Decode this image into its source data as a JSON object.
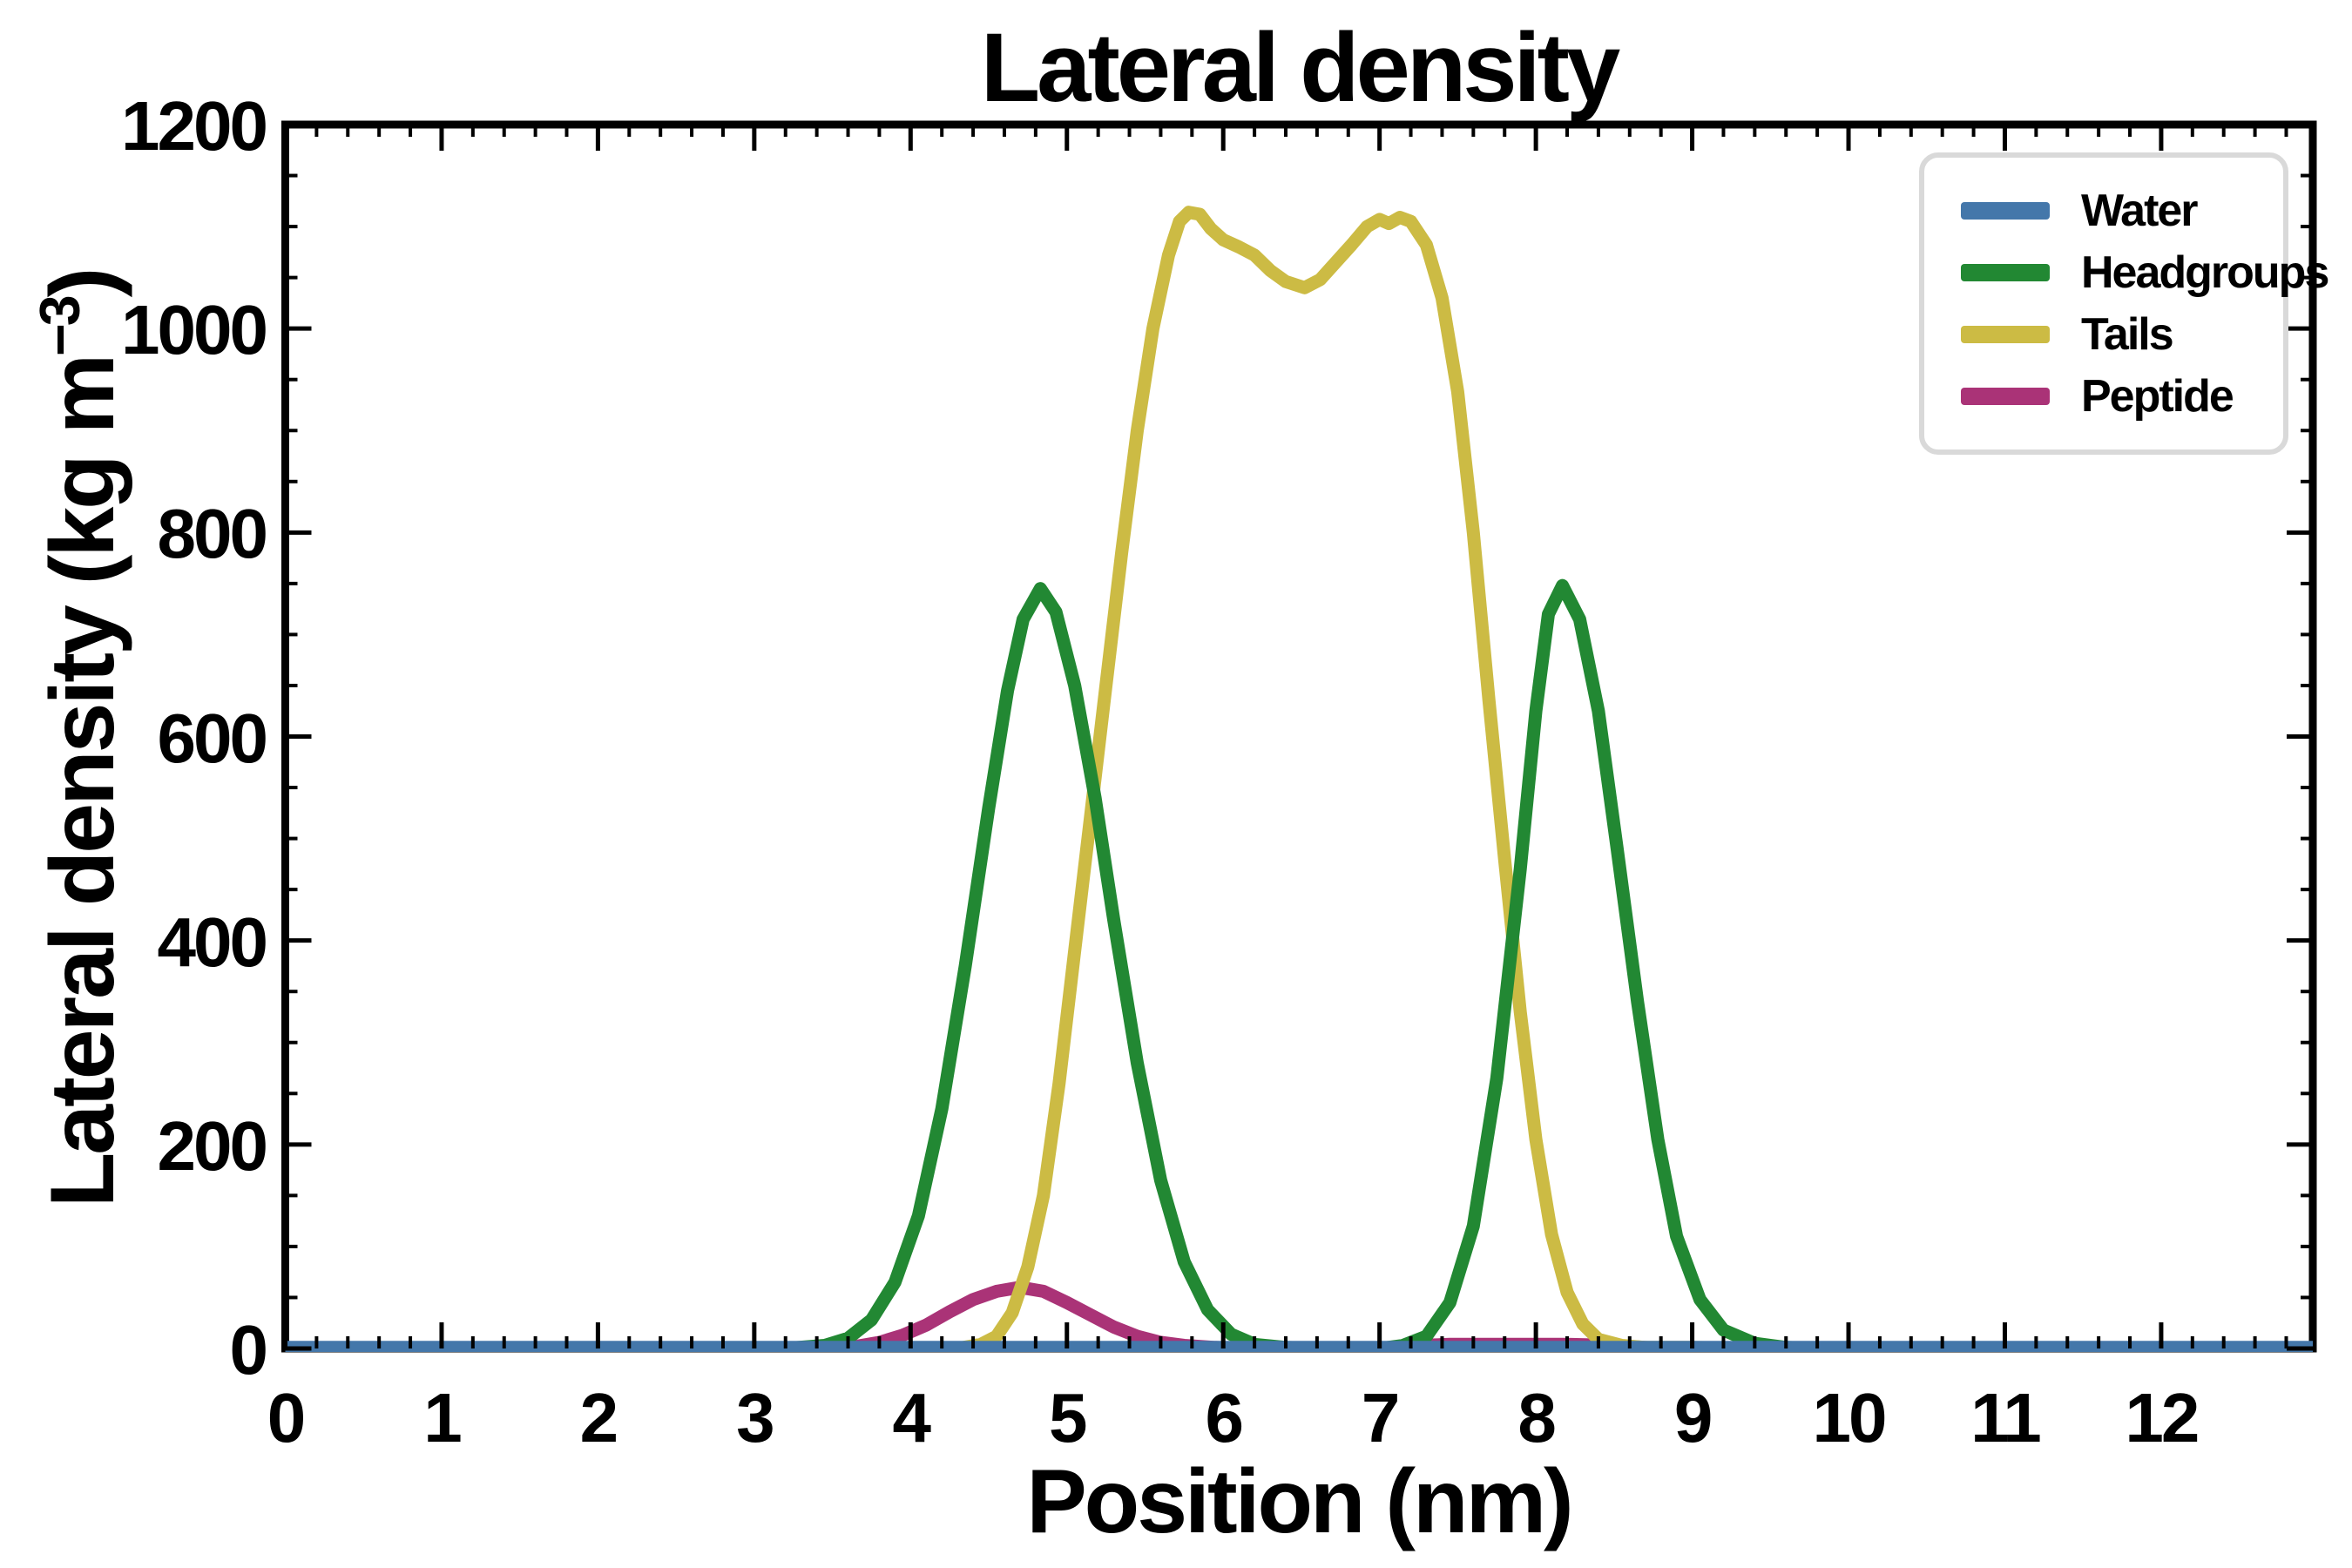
{
  "title": "Lateral density",
  "axes": {
    "xlabel": "Position (nm)",
    "ylabel": "Lateral density (kg m⁻³)",
    "ylabel_prefix": "Lateral density (kg m",
    "ylabel_sup": "−3",
    "ylabel_suffix": ")",
    "x_ticks": [
      0,
      1,
      2,
      3,
      4,
      5,
      6,
      7,
      8,
      9,
      10,
      11,
      12
    ],
    "y_ticks": [
      0,
      200,
      400,
      600,
      800,
      1000,
      1200
    ],
    "x_minor_step": 0.2,
    "y_minor_step": 50,
    "xlim": [
      0,
      12.97
    ],
    "ylim": [
      0,
      1200
    ]
  },
  "legend": {
    "items": [
      {
        "label": "Water",
        "color": "#4477AA"
      },
      {
        "label": "Headgroups",
        "color": "#228833"
      },
      {
        "label": "Tails",
        "color": "#CCBB44"
      },
      {
        "label": "Peptide",
        "color": "#AA3377"
      }
    ]
  },
  "chart_data": {
    "type": "line",
    "title": "Lateral density",
    "xlabel": "Position (nm)",
    "ylabel": "Lateral density (kg m⁻³)",
    "xlim": [
      0,
      12.97
    ],
    "ylim": [
      0,
      1200
    ],
    "grid": false,
    "legend_position": "upper right",
    "draw_order": [
      "Peptide",
      "Tails",
      "Headgroups",
      "Water"
    ],
    "series": [
      {
        "name": "Water",
        "color": "#4477AA",
        "points": [
          [
            0,
            1
          ],
          [
            1,
            1
          ],
          [
            2,
            1
          ],
          [
            3,
            1
          ],
          [
            4,
            1
          ],
          [
            5,
            1
          ],
          [
            6,
            1
          ],
          [
            7,
            1
          ],
          [
            8,
            1
          ],
          [
            9,
            1
          ],
          [
            10,
            1
          ],
          [
            11,
            1
          ],
          [
            12,
            1
          ],
          [
            12.97,
            1
          ]
        ]
      },
      {
        "name": "Headgroups",
        "color": "#228833",
        "points": [
          [
            0,
            0
          ],
          [
            3.0,
            0
          ],
          [
            3.2,
            0
          ],
          [
            3.45,
            3
          ],
          [
            3.6,
            10
          ],
          [
            3.75,
            28
          ],
          [
            3.9,
            65
          ],
          [
            4.05,
            130
          ],
          [
            4.2,
            235
          ],
          [
            4.35,
            375
          ],
          [
            4.5,
            530
          ],
          [
            4.62,
            645
          ],
          [
            4.72,
            715
          ],
          [
            4.83,
            745
          ],
          [
            4.93,
            722
          ],
          [
            5.05,
            650
          ],
          [
            5.18,
            540
          ],
          [
            5.3,
            420
          ],
          [
            5.45,
            280
          ],
          [
            5.6,
            165
          ],
          [
            5.75,
            85
          ],
          [
            5.9,
            38
          ],
          [
            6.05,
            14
          ],
          [
            6.2,
            4
          ],
          [
            6.4,
            1
          ],
          [
            6.6,
            0
          ],
          [
            7.0,
            0
          ],
          [
            7.15,
            3
          ],
          [
            7.3,
            12
          ],
          [
            7.45,
            45
          ],
          [
            7.6,
            120
          ],
          [
            7.75,
            265
          ],
          [
            7.9,
            470
          ],
          [
            8.0,
            625
          ],
          [
            8.08,
            720
          ],
          [
            8.17,
            748
          ],
          [
            8.28,
            715
          ],
          [
            8.4,
            625
          ],
          [
            8.52,
            490
          ],
          [
            8.65,
            340
          ],
          [
            8.78,
            205
          ],
          [
            8.9,
            110
          ],
          [
            9.05,
            48
          ],
          [
            9.2,
            18
          ],
          [
            9.4,
            5
          ],
          [
            9.6,
            1
          ],
          [
            9.8,
            0
          ],
          [
            12.97,
            0
          ]
        ]
      },
      {
        "name": "Tails",
        "color": "#CCBB44",
        "points": [
          [
            0,
            0
          ],
          [
            4.1,
            0
          ],
          [
            4.3,
            0
          ],
          [
            4.45,
            4
          ],
          [
            4.55,
            12
          ],
          [
            4.65,
            35
          ],
          [
            4.75,
            80
          ],
          [
            4.85,
            150
          ],
          [
            4.95,
            260
          ],
          [
            5.05,
            390
          ],
          [
            5.15,
            520
          ],
          [
            5.25,
            650
          ],
          [
            5.35,
            780
          ],
          [
            5.45,
            900
          ],
          [
            5.55,
            1000
          ],
          [
            5.65,
            1072
          ],
          [
            5.72,
            1105
          ],
          [
            5.78,
            1114
          ],
          [
            5.85,
            1112
          ],
          [
            5.92,
            1098
          ],
          [
            6.0,
            1087
          ],
          [
            6.1,
            1080
          ],
          [
            6.2,
            1072
          ],
          [
            6.3,
            1057
          ],
          [
            6.4,
            1046
          ],
          [
            6.52,
            1040
          ],
          [
            6.62,
            1048
          ],
          [
            6.72,
            1065
          ],
          [
            6.82,
            1082
          ],
          [
            6.92,
            1100
          ],
          [
            7.0,
            1107
          ],
          [
            7.06,
            1103
          ],
          [
            7.13,
            1109
          ],
          [
            7.2,
            1105
          ],
          [
            7.3,
            1082
          ],
          [
            7.4,
            1030
          ],
          [
            7.5,
            938
          ],
          [
            7.6,
            800
          ],
          [
            7.7,
            635
          ],
          [
            7.8,
            480
          ],
          [
            7.9,
            330
          ],
          [
            8.0,
            205
          ],
          [
            8.1,
            112
          ],
          [
            8.2,
            55
          ],
          [
            8.3,
            24
          ],
          [
            8.4,
            9
          ],
          [
            8.55,
            3
          ],
          [
            8.7,
            1
          ],
          [
            9.0,
            1
          ],
          [
            9.4,
            0
          ],
          [
            12.97,
            0
          ]
        ]
      },
      {
        "name": "Peptide",
        "color": "#AA3377",
        "points": [
          [
            0,
            0
          ],
          [
            3.3,
            0
          ],
          [
            3.5,
            0
          ],
          [
            3.65,
            2
          ],
          [
            3.8,
            6
          ],
          [
            3.95,
            13
          ],
          [
            4.1,
            23
          ],
          [
            4.25,
            36
          ],
          [
            4.4,
            48
          ],
          [
            4.55,
            56
          ],
          [
            4.7,
            60
          ],
          [
            4.85,
            56
          ],
          [
            5.0,
            45
          ],
          [
            5.15,
            33
          ],
          [
            5.3,
            21
          ],
          [
            5.45,
            12
          ],
          [
            5.6,
            6
          ],
          [
            5.75,
            3
          ],
          [
            5.95,
            1
          ],
          [
            6.2,
            0
          ],
          [
            7.1,
            0
          ],
          [
            7.25,
            3
          ],
          [
            7.45,
            4
          ],
          [
            7.8,
            4
          ],
          [
            8.2,
            4
          ],
          [
            8.5,
            3
          ],
          [
            8.7,
            1
          ],
          [
            8.85,
            0
          ],
          [
            12.97,
            0
          ]
        ]
      }
    ]
  }
}
